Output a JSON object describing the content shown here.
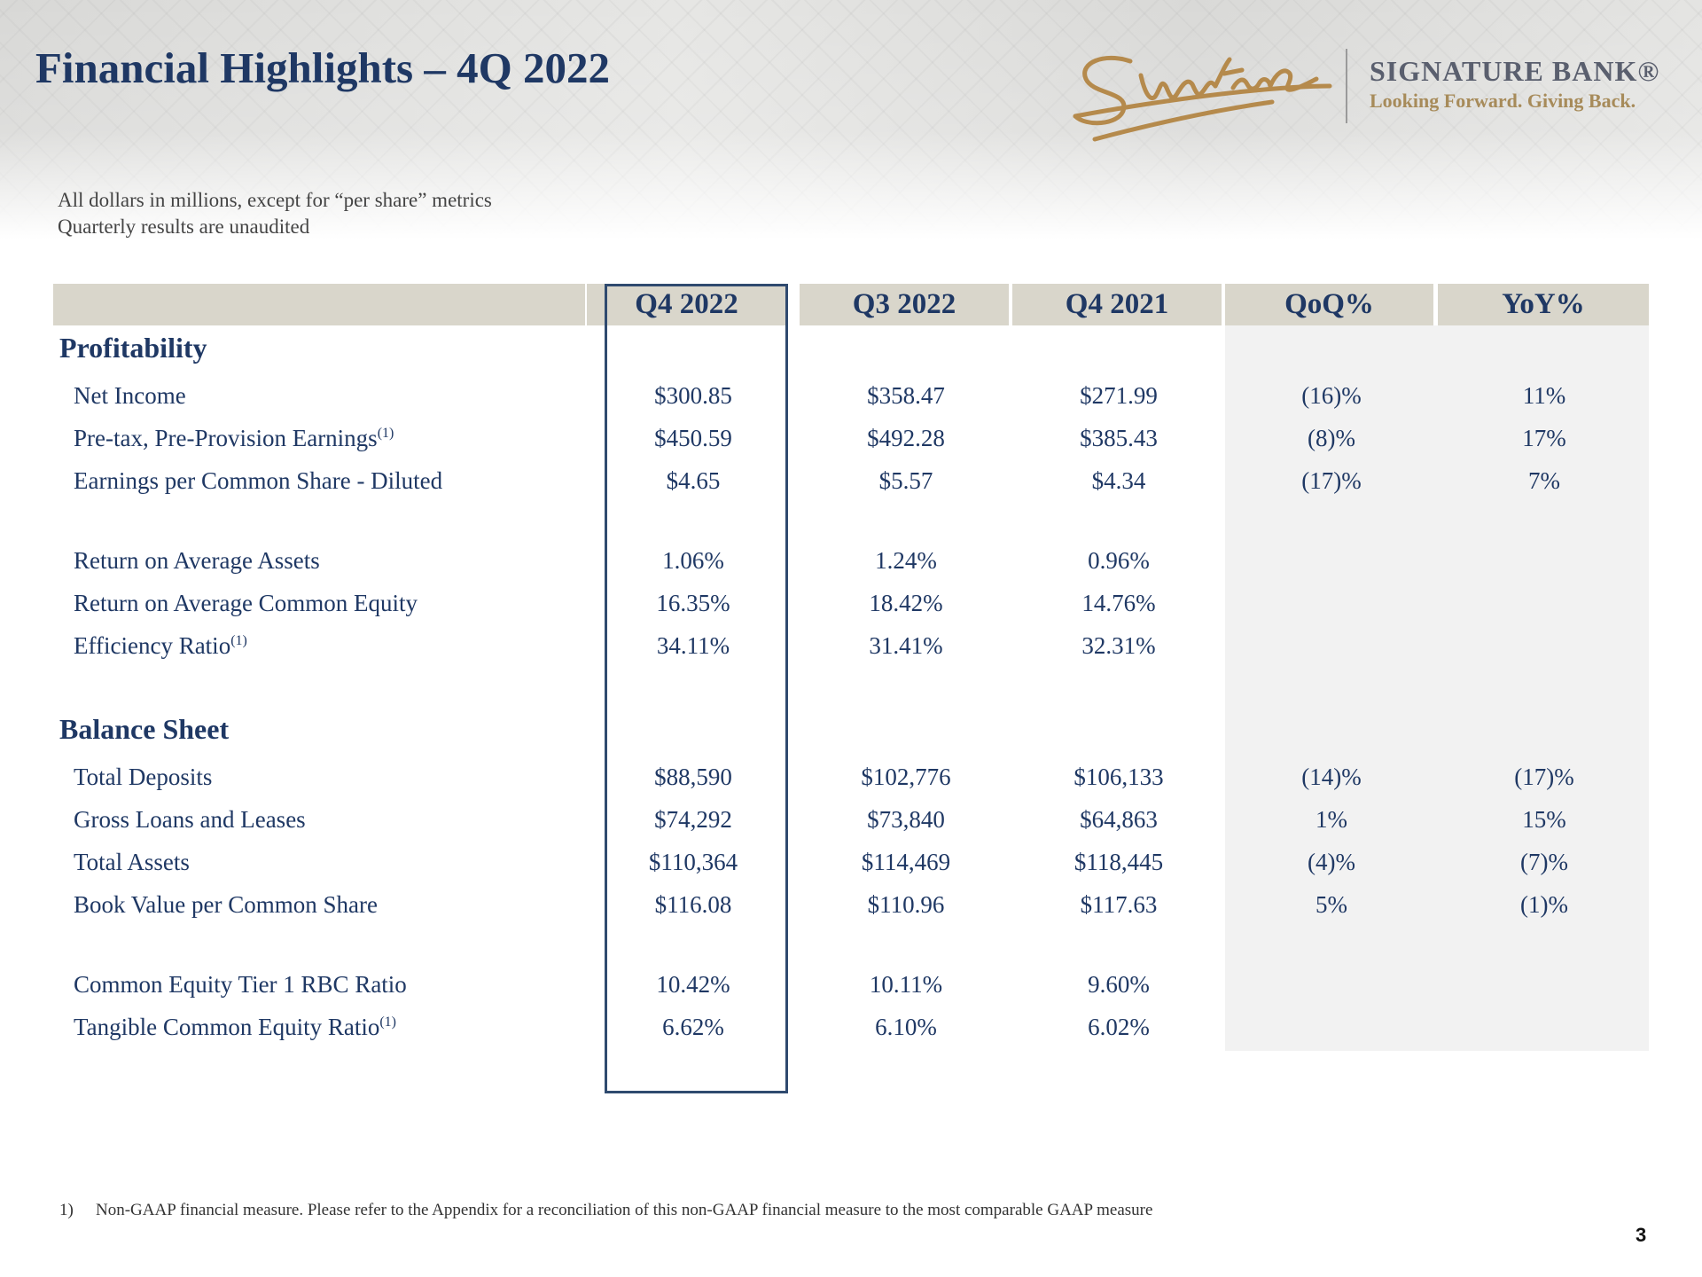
{
  "title": "Financial Highlights – 4Q 2022",
  "logo": {
    "name": "SIGNATURE BANK®",
    "tagline": "Looking Forward. Giving Back."
  },
  "subtitle": [
    "All dollars in millions, except for “per share” metrics",
    "Quarterly results are unaudited"
  ],
  "columns": [
    "Q4 2022",
    "Q3 2022",
    "Q4 2021",
    "QoQ%",
    "YoY%"
  ],
  "sections": [
    {
      "title": "Profitability",
      "rows": [
        {
          "label": "Net Income",
          "note": "",
          "values": [
            "$300.85",
            "$358.47",
            "$271.99",
            "(16)%",
            "11%"
          ]
        },
        {
          "label": "Pre-tax, Pre-Provision Earnings",
          "note": "(1)",
          "values": [
            "$450.59",
            "$492.28",
            "$385.43",
            "(8)%",
            "17%"
          ]
        },
        {
          "label": "Earnings per Common Share - Diluted",
          "note": "",
          "values": [
            "$4.65",
            "$5.57",
            "$4.34",
            "(17)%",
            "7%"
          ]
        },
        {
          "label": "Return on Average Assets",
          "note": "",
          "values": [
            "1.06%",
            "1.24%",
            "0.96%",
            "",
            ""
          ]
        },
        {
          "label": "Return on Average Common Equity",
          "note": "",
          "values": [
            "16.35%",
            "18.42%",
            "14.76%",
            "",
            ""
          ]
        },
        {
          "label": "Efficiency Ratio",
          "note": "(1)",
          "values": [
            "34.11%",
            "31.41%",
            "32.31%",
            "",
            ""
          ]
        }
      ]
    },
    {
      "title": "Balance Sheet",
      "rows": [
        {
          "label": "Total Deposits",
          "note": "",
          "values": [
            "$88,590",
            "$102,776",
            "$106,133",
            "(14)%",
            "(17)%"
          ]
        },
        {
          "label": "Gross Loans and Leases",
          "note": "",
          "values": [
            "$74,292",
            "$73,840",
            "$64,863",
            "1%",
            "15%"
          ]
        },
        {
          "label": "Total Assets",
          "note": "",
          "values": [
            "$110,364",
            "$114,469",
            "$118,445",
            "(4)%",
            "(7)%"
          ]
        },
        {
          "label": "Book Value per Common Share",
          "note": "",
          "values": [
            "$116.08",
            "$110.96",
            "$117.63",
            "5%",
            "(1)%"
          ]
        },
        {
          "label": "Common Equity Tier 1 RBC Ratio",
          "note": "",
          "values": [
            "10.42%",
            "10.11%",
            "9.60%",
            "",
            ""
          ]
        },
        {
          "label": "Tangible Common Equity Ratio",
          "note": "(1)",
          "values": [
            "6.62%",
            "6.10%",
            "6.02%",
            "",
            ""
          ]
        }
      ]
    }
  ],
  "footnote": {
    "marker": "1)",
    "text": "Non-GAAP financial measure. Please refer to the Appendix for a reconciliation of this non-GAAP financial measure to the most comparable GAAP measure"
  },
  "page_number": "3",
  "colors": {
    "title": "#1f3864",
    "header_fill": "#d9d6cb",
    "shade_fill": "#f2f2f2",
    "highlight_border": "#2f4a6f",
    "tagline": "#a78b5a"
  }
}
